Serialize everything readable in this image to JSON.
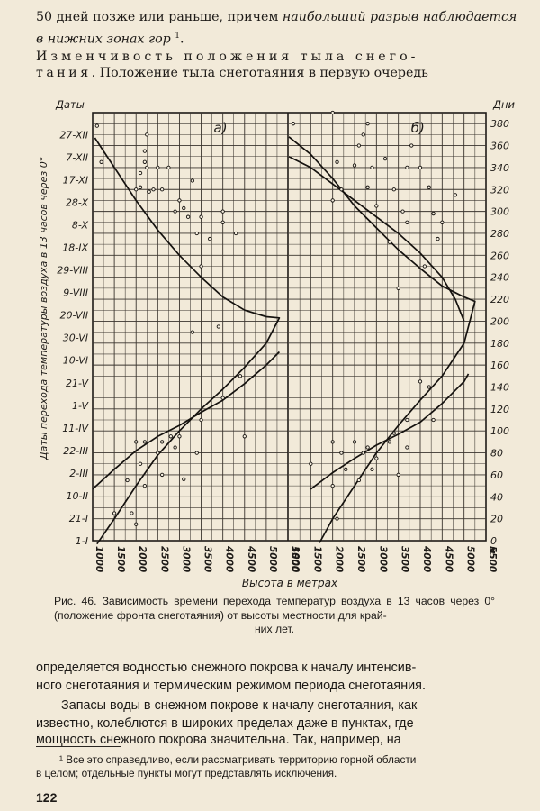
{
  "text": {
    "line1a": "50 дней позже или раньше, причем ",
    "line1b": "наибольший разрыв наблюдается",
    "line2": "в нижних зонах гор",
    "line2_sup": "1",
    "line2_tail": ".",
    "line3a": "Изменчивость положения тыла снего-",
    "line4a": "тания",
    "line4b": ". Положение тыла снеготаяния в первую очередь",
    "caption": "Рис. 46. Зависимость времени перехода температур воздуха в 13 часов через 0° (положение фронта снеготаяния) от высоты местности для край-",
    "caption_last": "них лет.",
    "body1": "определяется водностью снежного покрова к началу интенсив-",
    "body2": "ного снеготаяния и термическим режимом периода снеготаяния.",
    "body3": "Запасы воды в снежном покрове к началу снеготаяния, как",
    "body4": "известно, колеблются в широких пределах даже в пунктах, где",
    "body5": "мощность снежного покрова значительна. Так, например, на",
    "foot1": "¹ Все это справедливо, если рассматривать территорию горной области",
    "foot2": "в целом; отдельные пункты могут представлять исключения.",
    "pagenum": "122"
  },
  "chart_data": {
    "type": "scatter",
    "panels": [
      {
        "label": "а)",
        "curves": [
          {
            "points": [
              [
                1050,
                367
              ],
              [
                1500,
                340
              ],
              [
                2000,
                310
              ],
              [
                2500,
                283
              ],
              [
                3000,
                260
              ],
              [
                3500,
                240
              ],
              [
                4000,
                222
              ],
              [
                4500,
                210
              ],
              [
                5000,
                204
              ],
              [
                5300,
                203
              ],
              [
                5000,
                180
              ],
              [
                4500,
                158
              ],
              [
                4000,
                138
              ],
              [
                3500,
                120
              ],
              [
                3000,
                100
              ],
              [
                2500,
                78
              ],
              [
                2000,
                50
              ],
              [
                1500,
                20
              ],
              [
                1100,
                -3
              ]
            ]
          },
          {
            "points": [
              [
                1000,
                47
              ],
              [
                1500,
                65
              ],
              [
                2000,
                82
              ],
              [
                2500,
                95
              ],
              [
                3000,
                105
              ],
              [
                3500,
                117
              ],
              [
                4000,
                128
              ],
              [
                4500,
                143
              ],
              [
                5000,
                160
              ],
              [
                5300,
                172
              ]
            ]
          }
        ],
        "points": [
          [
            1100,
            378
          ],
          [
            1200,
            345
          ],
          [
            2200,
            355
          ],
          [
            2250,
            370
          ],
          [
            2200,
            345
          ],
          [
            2100,
            335
          ],
          [
            2250,
            340
          ],
          [
            2500,
            340
          ],
          [
            2750,
            340
          ],
          [
            2000,
            320
          ],
          [
            2100,
            322
          ],
          [
            2400,
            320
          ],
          [
            2600,
            320
          ],
          [
            2300,
            318
          ],
          [
            3000,
            310
          ],
          [
            3300,
            328
          ],
          [
            3100,
            303
          ],
          [
            2900,
            300
          ],
          [
            3200,
            295
          ],
          [
            3500,
            295
          ],
          [
            4000,
            290
          ],
          [
            4000,
            300
          ],
          [
            3700,
            275
          ],
          [
            3400,
            280
          ],
          [
            4300,
            280
          ],
          [
            3500,
            250
          ],
          [
            3900,
            195
          ],
          [
            3300,
            190
          ],
          [
            4400,
            150
          ],
          [
            4000,
            130
          ],
          [
            3500,
            110
          ],
          [
            4500,
            95
          ],
          [
            3000,
            95
          ],
          [
            2000,
            90
          ],
          [
            2200,
            90
          ],
          [
            2600,
            90
          ],
          [
            2800,
            95
          ],
          [
            2500,
            80
          ],
          [
            2900,
            85
          ],
          [
            3400,
            80
          ],
          [
            2100,
            70
          ],
          [
            2600,
            60
          ],
          [
            1800,
            55
          ],
          [
            2200,
            50
          ],
          [
            3100,
            56
          ],
          [
            1900,
            25
          ],
          [
            1500,
            25
          ],
          [
            2000,
            15
          ]
        ]
      },
      {
        "label": "б)",
        "curves": [
          {
            "points": [
              [
                1000,
                368
              ],
              [
                1500,
                352
              ],
              [
                2000,
                330
              ],
              [
                2500,
                305
              ],
              [
                3000,
                285
              ],
              [
                3500,
                265
              ],
              [
                4000,
                248
              ],
              [
                4500,
                232
              ],
              [
                5000,
                222
              ],
              [
                5250,
                218
              ],
              [
                5000,
                180
              ],
              [
                4500,
                150
              ],
              [
                4000,
                128
              ],
              [
                3500,
                105
              ],
              [
                3000,
                80
              ],
              [
                2500,
                50
              ],
              [
                2000,
                20
              ],
              [
                1700,
                -2
              ]
            ]
          },
          {
            "points": [
              [
                1000,
                350
              ],
              [
                1500,
                340
              ],
              [
                2000,
                325
              ],
              [
                2500,
                310
              ],
              [
                3000,
                295
              ],
              [
                3500,
                280
              ],
              [
                4000,
                262
              ],
              [
                4500,
                240
              ],
              [
                4800,
                220
              ],
              [
                5000,
                200
              ]
            ]
          },
          {
            "points": [
              [
                1500,
                47
              ],
              [
                2000,
                62
              ],
              [
                2500,
                75
              ],
              [
                3000,
                87
              ],
              [
                3500,
                97
              ],
              [
                4000,
                108
              ],
              [
                4500,
                125
              ],
              [
                5000,
                145
              ],
              [
                5100,
                152
              ]
            ]
          }
        ],
        "points": [
          [
            1100,
            380
          ],
          [
            2000,
            390
          ],
          [
            2800,
            380
          ],
          [
            2700,
            370
          ],
          [
            2600,
            360
          ],
          [
            3200,
            348
          ],
          [
            3800,
            360
          ],
          [
            2100,
            345
          ],
          [
            2500,
            342
          ],
          [
            2900,
            340
          ],
          [
            3700,
            340
          ],
          [
            4000,
            340
          ],
          [
            2200,
            320
          ],
          [
            2800,
            322
          ],
          [
            3400,
            320
          ],
          [
            4200,
            322
          ],
          [
            4800,
            315
          ],
          [
            2000,
            310
          ],
          [
            3000,
            305
          ],
          [
            3600,
            300
          ],
          [
            4300,
            298
          ],
          [
            3700,
            290
          ],
          [
            4500,
            290
          ],
          [
            3300,
            272
          ],
          [
            4400,
            275
          ],
          [
            4100,
            250
          ],
          [
            3500,
            230
          ],
          [
            4000,
            145
          ],
          [
            4200,
            140
          ],
          [
            3700,
            110
          ],
          [
            3400,
            98
          ],
          [
            4300,
            110
          ],
          [
            2000,
            90
          ],
          [
            2500,
            90
          ],
          [
            2800,
            85
          ],
          [
            3300,
            90
          ],
          [
            2200,
            80
          ],
          [
            2700,
            80
          ],
          [
            3000,
            75
          ],
          [
            3700,
            85
          ],
          [
            2300,
            65
          ],
          [
            2600,
            55
          ],
          [
            2000,
            50
          ],
          [
            2900,
            65
          ],
          [
            3500,
            60
          ],
          [
            2100,
            20
          ],
          [
            1500,
            70
          ]
        ]
      }
    ],
    "panel_a_xticks": [
      "1000",
      "1500",
      "2000",
      "2500",
      "3000",
      "3500",
      "4000",
      "4500",
      "5000",
      "5500"
    ],
    "panel_b_xticks": [
      "1000",
      "1500",
      "2000",
      "2500",
      "3000",
      "3500",
      "4000",
      "4500",
      "5000",
      "5500"
    ],
    "x_unit": "м",
    "xlabel": "Высота в метрах",
    "xlim": [
      1000,
      5500
    ],
    "left_axis_title": "Даты",
    "left_ylabel": "Даты перехода температуры воздуха в 13 часов через 0°",
    "left_tick_labels": [
      "27-XII",
      "7-XII",
      "17-XI",
      "28-X",
      "8-X",
      "18-IX",
      "29-VIII",
      "9-VIII",
      "20-VII",
      "30-VI",
      "10-VI",
      "21-V",
      "1-V",
      "11-IV",
      "22-III",
      "2-III",
      "10-II",
      "21-I",
      "1-I"
    ],
    "right_axis_title": "Дни",
    "right_tick_labels": [
      "380",
      "360",
      "340",
      "320",
      "300",
      "280",
      "260",
      "240",
      "220",
      "200",
      "180",
      "160",
      "140",
      "120",
      "100",
      "80",
      "60",
      "40",
      "20",
      "0"
    ],
    "ylim": [
      0,
      390
    ]
  }
}
